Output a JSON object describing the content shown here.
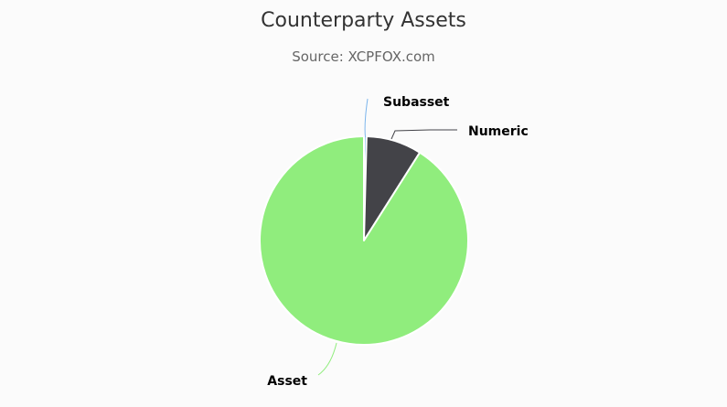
{
  "chart_data": {
    "type": "pie",
    "title": "Counterparty Assets",
    "subtitle": "Source: XCPFOX.com",
    "slices": [
      {
        "name": "Subasset",
        "value": 0.4,
        "color": "#7cb5ec"
      },
      {
        "name": "Numeric",
        "value": 8.6,
        "color": "#434348"
      },
      {
        "name": "Asset",
        "value": 91.0,
        "color": "#90ed7d"
      }
    ]
  }
}
